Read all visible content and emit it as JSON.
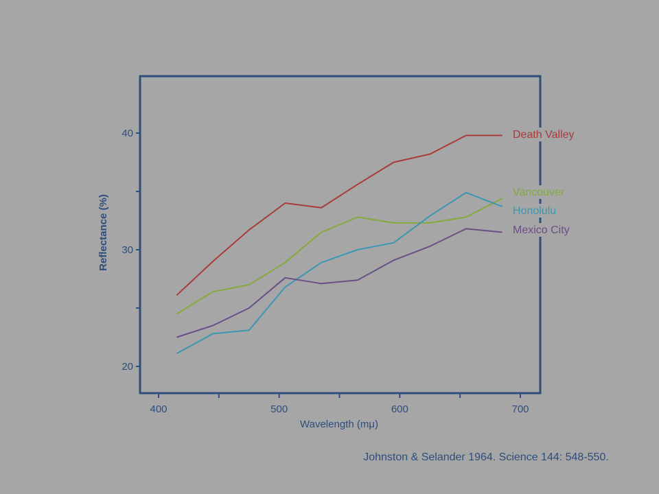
{
  "citation": "Johnston & Selander 1964. Science 144: 548-550.",
  "colors": {
    "axis": "#2e4d7c",
    "background": "#a6a6a6"
  },
  "chart_data": {
    "type": "line",
    "title": "",
    "xlabel": "Wavelength (mμ)",
    "ylabel": "Reflectance (%)",
    "xlim": [
      385,
      715
    ],
    "ylim": [
      18,
      45
    ],
    "xticks": [
      400,
      500,
      600,
      700
    ],
    "xtick_labels": [
      "400",
      "500",
      "600",
      "700"
    ],
    "xminor": [
      450,
      550,
      650
    ],
    "yticks": [
      20,
      30,
      40
    ],
    "ytick_labels": [
      "20",
      "30",
      "40"
    ],
    "yminor": [
      25,
      35
    ],
    "grid": false,
    "legend": "series names printed at right end of lines",
    "x": [
      415,
      445,
      475,
      505,
      535,
      565,
      595,
      625,
      655,
      685
    ],
    "series": [
      {
        "name": "Death Valley",
        "color": "#a83b3b",
        "values": [
          26.1,
          29.0,
          31.7,
          34.0,
          33.6,
          35.6,
          37.5,
          38.2,
          39.8,
          39.8
        ]
      },
      {
        "name": "Vancouver",
        "color": "#85a93d",
        "values": [
          24.5,
          26.4,
          27.0,
          28.9,
          31.5,
          32.8,
          32.3,
          32.3,
          32.8,
          34.4
        ]
      },
      {
        "name": "Honolulu",
        "color": "#3a97b3",
        "values": [
          21.1,
          22.8,
          23.1,
          26.8,
          28.9,
          30.0,
          30.6,
          32.9,
          34.9,
          33.7
        ]
      },
      {
        "name": "Mexico City",
        "color": "#6a4f87",
        "values": [
          22.5,
          23.5,
          25.0,
          27.6,
          27.1,
          27.4,
          29.1,
          30.3,
          31.8,
          31.5
        ]
      }
    ]
  }
}
